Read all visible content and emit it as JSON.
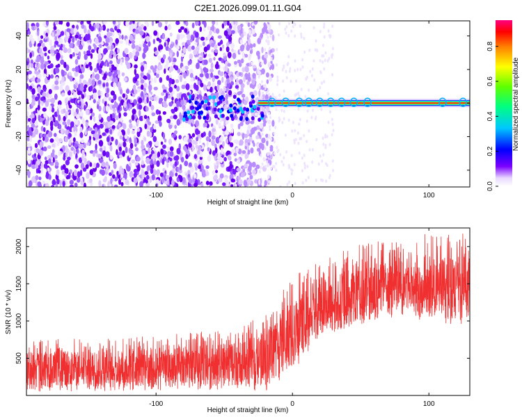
{
  "title": "C2E1.2026.099.01.11.G04",
  "chart_data": [
    {
      "type": "heatmap",
      "title": "C2E1.2026.099.01.11.G04",
      "xlabel": "Height of straight line (km)",
      "ylabel": "Frequency (Hz)",
      "xlim": [
        -195,
        130
      ],
      "ylim": [
        -50,
        49
      ],
      "xticks": [
        -100,
        0,
        100
      ],
      "xtick_labels": [
        "-100",
        "0",
        "100"
      ],
      "yticks": [
        -40,
        -20,
        0,
        20,
        40
      ],
      "ytick_labels": [
        "-40",
        "-20",
        "0",
        "20",
        "40"
      ],
      "description_values": {
        "noise_region_x": [
          -195,
          -25
        ],
        "signal_frequency_hz": 0,
        "signal_start_km": -25
      },
      "colorbar": {
        "label": "Normalized spectral amplitude",
        "range": [
          0.0,
          0.95
        ],
        "ticks": [
          0.0,
          0.2,
          0.4,
          0.6,
          0.8
        ],
        "tick_labels": [
          "0.0",
          "0.2",
          "0.4",
          "0.6",
          "0.8"
        ],
        "colors": [
          "#ffffff",
          "#7b00ff",
          "#0000ff",
          "#00ffff",
          "#00ff00",
          "#ffff00",
          "#ff0000",
          "#ff0080"
        ]
      }
    },
    {
      "type": "line",
      "xlabel": "Height of straight line (km)",
      "ylabel": "SNR (10 * v/v)",
      "xlim": [
        -195,
        130
      ],
      "ylim": [
        0,
        2250
      ],
      "xticks": [
        -100,
        0,
        100
      ],
      "xtick_labels": [
        "-100",
        "0",
        "100"
      ],
      "yticks": [
        500,
        1000,
        1500,
        2000
      ],
      "ytick_labels": [
        "500",
        "1000",
        "1500",
        "2000"
      ],
      "color": "#f03030",
      "envelope": {
        "x": [
          -195,
          -120,
          -40,
          -20,
          0,
          20,
          40,
          60,
          80,
          100,
          120,
          130
        ],
        "min": [
          50,
          60,
          80,
          50,
          300,
          800,
          900,
          1000,
          1050,
          1000,
          950,
          900
        ],
        "mean": [
          350,
          360,
          420,
          500,
          850,
          1150,
          1300,
          1400,
          1450,
          1480,
          1450,
          1450
        ],
        "max": [
          750,
          780,
          900,
          1100,
          1600,
          1800,
          2000,
          2150,
          2150,
          2200,
          2150,
          2250
        ]
      }
    }
  ]
}
